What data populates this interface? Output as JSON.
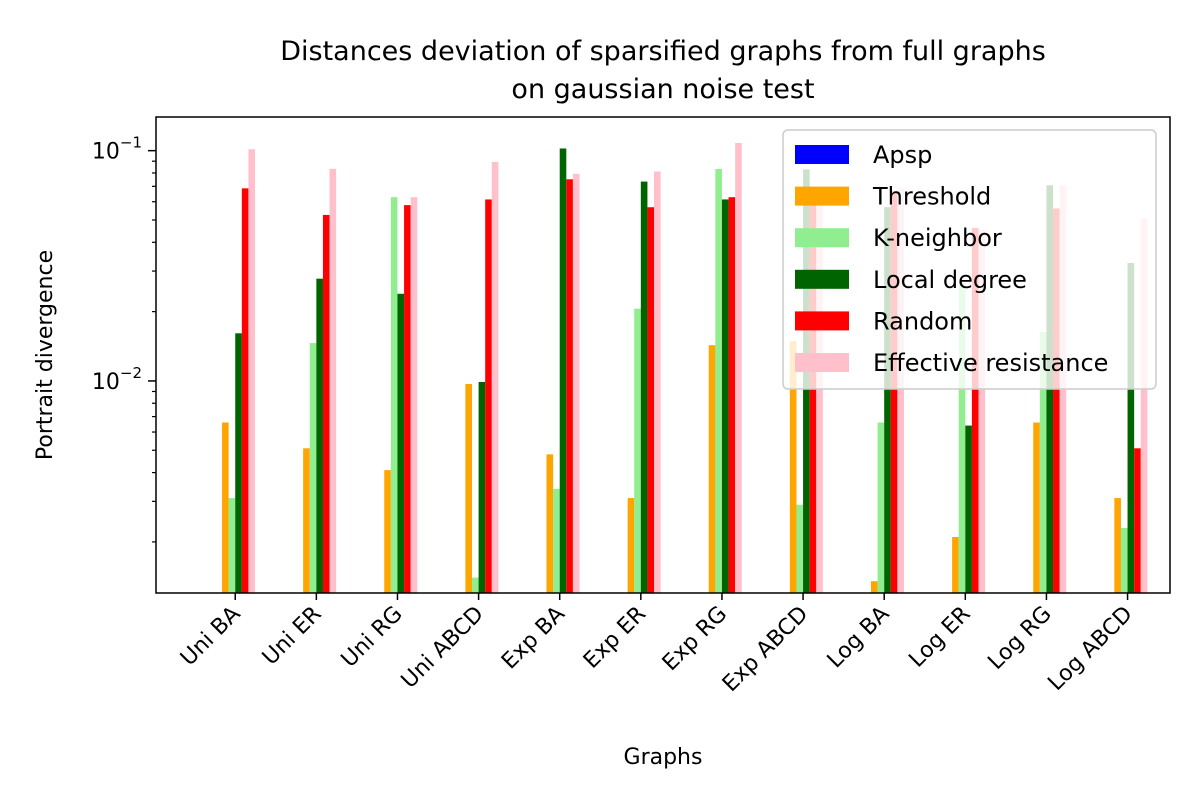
{
  "chart_data": {
    "type": "bar",
    "title": [
      "Distances deviation of sparsified graphs from full graphs",
      "on gaussian noise test"
    ],
    "xlabel": "Graphs",
    "ylabel": "Portrait divergence",
    "yscale": "log",
    "ylim": [
      0.0012,
      0.14
    ],
    "ytick_labels": [
      {
        "value": 0.1,
        "base": "10",
        "exp": "−1"
      },
      {
        "value": 0.01,
        "base": "10",
        "exp": "−2"
      }
    ],
    "legend_position": "upper right",
    "categories": [
      "Uni BA",
      "Uni ER",
      "Uni RG",
      "Uni ABCD",
      "Exp BA",
      "Exp ER",
      "Exp RG",
      "Exp ABCD",
      "Log BA",
      "Log ER",
      "Log RG",
      "Log ABCD"
    ],
    "series": [
      {
        "name": "Apsp",
        "color": "#0000ff",
        "values": [
          0,
          0,
          0,
          0,
          0,
          0,
          0,
          0,
          0,
          0,
          0,
          0
        ]
      },
      {
        "name": "Threshold",
        "color": "#ffa500",
        "values": [
          0.0066,
          0.0051,
          0.0041,
          0.0097,
          0.0048,
          0.0031,
          0.0143,
          0.0149,
          0.00135,
          0.0021,
          0.0066,
          0.0031
        ]
      },
      {
        "name": "K-neighbor",
        "color": "#90ee90",
        "values": [
          0.0031,
          0.0146,
          0.0628,
          0.0014,
          0.0034,
          0.0206,
          0.0833,
          0.0029,
          0.0066,
          0.0271,
          0.0163,
          0.0023
        ]
      },
      {
        "name": "Local degree",
        "color": "#006400",
        "values": [
          0.0161,
          0.0278,
          0.0239,
          0.0099,
          0.1022,
          0.0734,
          0.0614,
          0.0829,
          0.0568,
          0.0064,
          0.0707,
          0.0325
        ]
      },
      {
        "name": "Random",
        "color": "#ff0000",
        "values": [
          0.0686,
          0.0526,
          0.058,
          0.0614,
          0.0751,
          0.0568,
          0.0628,
          0.0686,
          0.0668,
          0.0462,
          0.0561,
          0.0051
        ]
      },
      {
        "name": "Effective resistance",
        "color": "#ffc0cb",
        "values": [
          0.1014,
          0.0834,
          0.0628,
          0.0893,
          0.0793,
          0.0812,
          0.108,
          0.0686,
          0.0686,
          0.0455,
          0.0707,
          0.0506
        ]
      }
    ]
  }
}
